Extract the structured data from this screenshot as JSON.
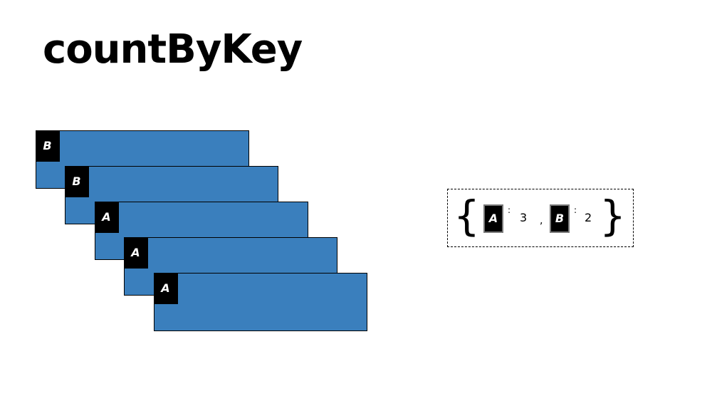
{
  "title": "countByKey",
  "colors": {
    "record_fill": "#3a7fbd",
    "key_fill": "#000000",
    "key_text": "#ffffff"
  },
  "records": [
    {
      "key": "B"
    },
    {
      "key": "B"
    },
    {
      "key": "A"
    },
    {
      "key": "A"
    },
    {
      "key": "A"
    }
  ],
  "result": {
    "open_brace": "{",
    "close_brace": "}",
    "separator": ",",
    "colon": ":",
    "entries": [
      {
        "key": "A",
        "count": "3"
      },
      {
        "key": "B",
        "count": "2"
      }
    ]
  }
}
